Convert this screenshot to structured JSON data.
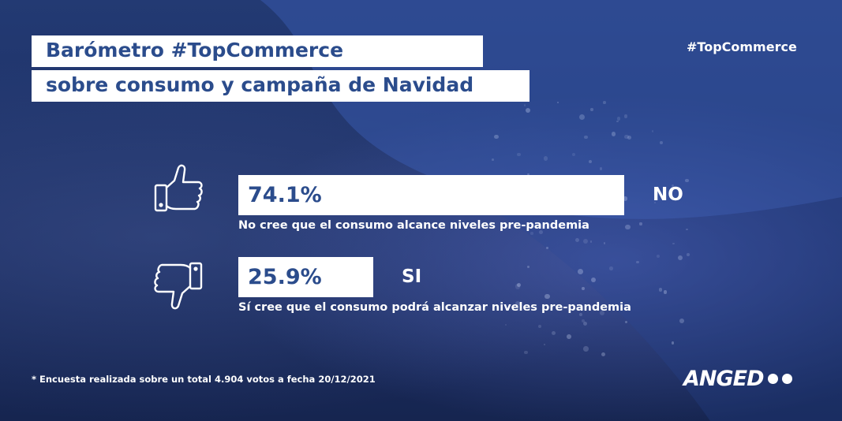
{
  "header": {
    "title_line1": "Barómetro #TopCommerce",
    "title_line2": "sobre consumo y campaña de Navidad",
    "hashtag": "#TopCommerce"
  },
  "chart_data": {
    "type": "bar",
    "orientation": "horizontal",
    "unit": "%",
    "categories": [
      "NO",
      "SI"
    ],
    "values": [
      74.1,
      25.9
    ],
    "value_labels": [
      "74.1%",
      "25.9%"
    ],
    "descriptions": [
      "No cree que el consumo alcance niveles pre-pandemia",
      "Sí cree que el consumo podrá alcanzar niveles pre-pandemia"
    ],
    "icons": [
      "thumbs-up-icon",
      "thumbs-down-icon"
    ],
    "bar_color": "#ffffff",
    "value_color": "#2b4c8c"
  },
  "footer": {
    "footnote": "* Encuesta realizada sobre un total 4.904 votos a fecha 20/12/2021",
    "logo_text": "ANGED"
  },
  "colors": {
    "background": "#1b2d62",
    "accent": "#2b4c8c",
    "text": "#ffffff"
  }
}
